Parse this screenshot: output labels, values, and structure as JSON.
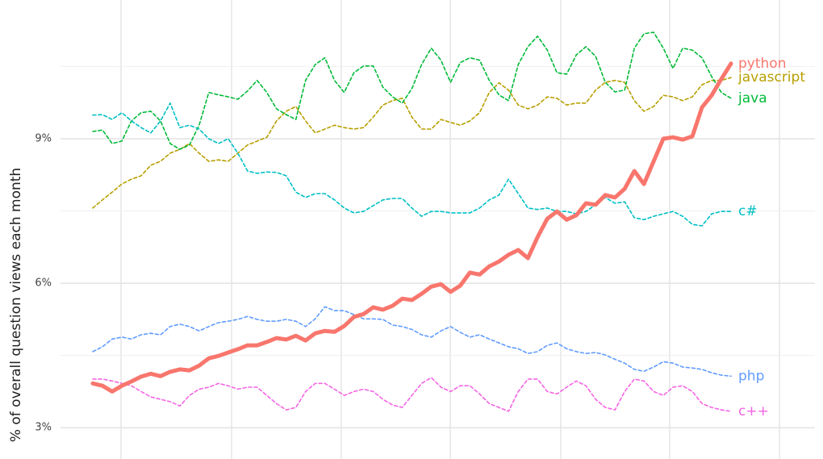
{
  "chart_data": {
    "type": "line",
    "y_label": "% of overall question views each month",
    "categories": [
      null,
      null,
      null,
      null,
      null,
      null,
      null,
      null,
      null,
      null,
      null,
      null,
      null,
      null,
      null,
      null,
      null,
      null,
      null,
      null,
      null,
      null,
      null,
      null,
      null,
      null,
      null,
      null,
      null,
      null,
      null,
      null,
      null,
      null,
      null,
      null,
      null,
      null,
      null,
      null,
      null,
      null,
      null,
      null,
      null,
      null,
      null,
      null,
      null,
      null,
      null,
      null,
      null,
      null,
      null,
      null,
      null,
      null,
      null,
      null,
      null,
      null,
      null,
      null,
      null,
      null,
      null
    ],
    "ylim": [
      2.35,
      11.88
    ],
    "yticks": [
      {
        "value": 3,
        "label": "3%"
      },
      {
        "value": 6,
        "label": "6%"
      },
      {
        "value": 9,
        "label": "9%"
      }
    ],
    "grid": true,
    "series": [
      {
        "name": "python",
        "color": "#f8766d",
        "dashed": false,
        "width": 5,
        "values": [
          3.92,
          3.87,
          3.75,
          3.87,
          3.96,
          4.06,
          4.12,
          4.07,
          4.16,
          4.21,
          4.19,
          4.29,
          4.44,
          4.49,
          4.56,
          4.63,
          4.71,
          4.71,
          4.78,
          4.86,
          4.83,
          4.91,
          4.81,
          4.96,
          5.01,
          4.99,
          5.11,
          5.3,
          5.36,
          5.5,
          5.45,
          5.53,
          5.68,
          5.65,
          5.78,
          5.93,
          5.98,
          5.82,
          5.95,
          6.22,
          6.18,
          6.35,
          6.45,
          6.59,
          6.69,
          6.52,
          6.96,
          7.34,
          7.49,
          7.32,
          7.41,
          7.66,
          7.63,
          7.83,
          7.78,
          7.96,
          8.33,
          8.06,
          8.53,
          9.0,
          9.03,
          8.98,
          9.05,
          9.65,
          9.9,
          10.24,
          10.56
        ]
      },
      {
        "name": "javascript",
        "color": "#b79f00",
        "dashed": true,
        "width": 1.6,
        "values": [
          7.56,
          7.73,
          7.89,
          8.06,
          8.16,
          8.23,
          8.45,
          8.53,
          8.7,
          8.78,
          8.9,
          8.7,
          8.53,
          8.56,
          8.53,
          8.7,
          8.87,
          8.95,
          9.03,
          9.37,
          9.57,
          9.67,
          9.37,
          9.12,
          9.2,
          9.28,
          9.23,
          9.2,
          9.23,
          9.45,
          9.7,
          9.79,
          9.84,
          9.45,
          9.2,
          9.2,
          9.4,
          9.34,
          9.28,
          9.37,
          9.54,
          9.96,
          10.16,
          10.01,
          9.7,
          9.62,
          9.7,
          9.87,
          9.84,
          9.7,
          9.74,
          9.74,
          10.01,
          10.17,
          10.21,
          10.17,
          9.79,
          9.57,
          9.67,
          9.9,
          9.87,
          9.79,
          9.87,
          10.12,
          10.21,
          10.21,
          10.27
        ]
      },
      {
        "name": "java",
        "color": "#00ba38",
        "dashed": true,
        "width": 1.6,
        "values": [
          9.15,
          9.18,
          8.9,
          8.95,
          9.37,
          9.54,
          9.57,
          9.37,
          8.9,
          8.78,
          8.87,
          9.28,
          9.96,
          9.91,
          9.87,
          9.82,
          9.99,
          10.21,
          9.96,
          9.62,
          9.5,
          9.4,
          10.21,
          10.54,
          10.68,
          10.21,
          9.96,
          10.37,
          10.51,
          10.51,
          10.07,
          9.87,
          9.74,
          10.04,
          10.54,
          10.88,
          10.63,
          10.17,
          10.58,
          10.68,
          10.63,
          10.21,
          9.91,
          9.79,
          10.54,
          10.91,
          11.13,
          10.84,
          10.37,
          10.34,
          10.74,
          10.91,
          10.71,
          10.17,
          9.97,
          10.01,
          10.88,
          11.18,
          11.21,
          10.88,
          10.46,
          10.88,
          10.84,
          10.68,
          10.29,
          9.96,
          9.84
        ]
      },
      {
        "name": "c#",
        "color": "#00bfc4",
        "dashed": true,
        "width": 1.6,
        "values": [
          9.49,
          9.5,
          9.4,
          9.54,
          9.37,
          9.23,
          9.12,
          9.37,
          9.74,
          9.23,
          9.28,
          9.2,
          9.0,
          8.9,
          9.0,
          8.7,
          8.33,
          8.28,
          8.31,
          8.3,
          8.23,
          7.89,
          7.78,
          7.86,
          7.86,
          7.73,
          7.56,
          7.46,
          7.49,
          7.61,
          7.73,
          7.76,
          7.76,
          7.56,
          7.39,
          7.49,
          7.49,
          7.46,
          7.46,
          7.46,
          7.56,
          7.73,
          7.83,
          8.16,
          7.86,
          7.56,
          7.53,
          7.56,
          7.49,
          7.49,
          7.44,
          7.49,
          7.63,
          7.78,
          7.66,
          7.69,
          7.36,
          7.32,
          7.39,
          7.44,
          7.49,
          7.39,
          7.22,
          7.19,
          7.44,
          7.49,
          7.49
        ]
      },
      {
        "name": "php",
        "color": "#619cff",
        "dashed": true,
        "width": 1.6,
        "values": [
          4.58,
          4.68,
          4.84,
          4.88,
          4.84,
          4.93,
          4.96,
          4.93,
          5.1,
          5.15,
          5.1,
          5.01,
          5.1,
          5.18,
          5.21,
          5.25,
          5.31,
          5.25,
          5.21,
          5.21,
          5.25,
          5.21,
          5.1,
          5.26,
          5.51,
          5.43,
          5.43,
          5.35,
          5.26,
          5.26,
          5.25,
          5.13,
          5.1,
          5.04,
          4.93,
          4.88,
          5.01,
          5.1,
          4.98,
          4.88,
          4.93,
          4.84,
          4.76,
          4.68,
          4.64,
          4.54,
          4.58,
          4.71,
          4.76,
          4.64,
          4.58,
          4.54,
          4.56,
          4.51,
          4.42,
          4.34,
          4.21,
          4.17,
          4.26,
          4.37,
          4.34,
          4.26,
          4.24,
          4.21,
          4.14,
          4.09,
          4.07
        ]
      },
      {
        "name": "c++",
        "color": "#f564e3",
        "dashed": true,
        "width": 1.6,
        "values": [
          4.01,
          4.01,
          3.97,
          3.92,
          3.87,
          3.75,
          3.64,
          3.59,
          3.54,
          3.45,
          3.67,
          3.8,
          3.84,
          3.92,
          3.87,
          3.8,
          3.84,
          3.84,
          3.67,
          3.5,
          3.37,
          3.42,
          3.75,
          3.92,
          3.92,
          3.8,
          3.67,
          3.75,
          3.8,
          3.75,
          3.59,
          3.47,
          3.42,
          3.67,
          3.92,
          4.04,
          3.84,
          3.75,
          3.87,
          3.87,
          3.7,
          3.5,
          3.42,
          3.34,
          3.75,
          4.01,
          4.01,
          3.75,
          3.7,
          3.84,
          3.97,
          3.87,
          3.59,
          3.42,
          3.37,
          3.75,
          4.01,
          3.97,
          3.75,
          3.67,
          3.84,
          3.87,
          3.75,
          3.5,
          3.42,
          3.37,
          3.34
        ]
      }
    ]
  }
}
